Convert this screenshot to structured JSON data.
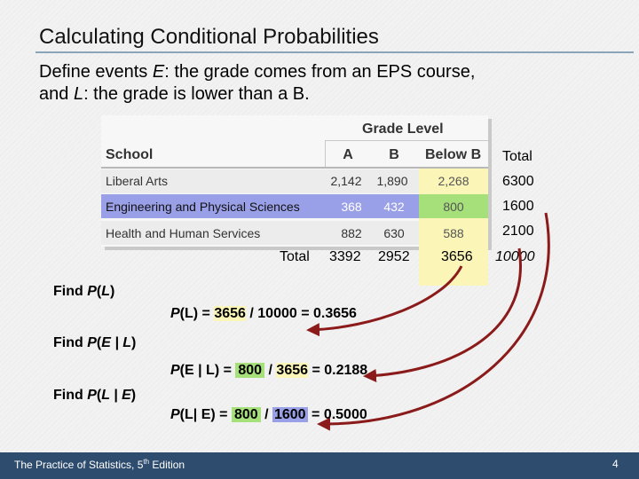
{
  "slide": {
    "title": "Calculating Conditional Probabilities",
    "intro_line1_prefix": "Define events ",
    "intro_line1_E": "E",
    "intro_line1_suffix": ": the grade comes from an EPS course,",
    "intro_line2_prefix": "and ",
    "intro_line2_L": "L",
    "intro_line2_suffix": ": the grade is lower than a B."
  },
  "table": {
    "group_header": "Grade Level",
    "school_header": "School",
    "col_A": "A",
    "col_B": "B",
    "col_below": "Below B",
    "col_total": "Total",
    "rows": [
      {
        "school": "Liberal Arts",
        "a": "2,142",
        "b": "1,890",
        "below": "2,268",
        "total": "6300"
      },
      {
        "school": "Engineering and Physical Sciences",
        "a": "368",
        "b": "432",
        "below": "800",
        "total": "1600"
      },
      {
        "school": "Health and Human Services",
        "a": "882",
        "b": "630",
        "below": "588",
        "total": "2100"
      }
    ],
    "totals": {
      "label": "Total",
      "a": "3392",
      "b": "2952",
      "below": "3656",
      "grand": "10000"
    }
  },
  "problems": [
    {
      "find_prefix": "Find ",
      "find_P": "P",
      "find_open": "(",
      "find_arg": "L",
      "find_close": ")",
      "answer_lhs_P": "P",
      "answer_lhs_arg": "(L) = ",
      "answer_num": "3656",
      "answer_mid": " / 10000 = 0.3656"
    },
    {
      "find_prefix": "Find ",
      "find_P": "P",
      "find_open": "(",
      "find_arg": "E | L",
      "find_close": ")",
      "answer_lhs_P": "P",
      "answer_lhs_arg": "(E | L) = ",
      "answer_num": "800",
      "answer_sep": " / ",
      "answer_den": "3656",
      "answer_result": " = 0.2188"
    },
    {
      "find_prefix": "Find ",
      "find_P": "P",
      "find_open": "(",
      "find_arg": "L | E",
      "find_close": ")",
      "answer_lhs_P": "P",
      "answer_lhs_arg": "(L| E) = ",
      "answer_num": "800",
      "answer_sep": " / ",
      "answer_den": "1600",
      "answer_result": " = 0.5000"
    }
  ],
  "footer": {
    "text_prefix": "The Practice of Statistics, 5",
    "text_sup": "th",
    "text_suffix": " Edition",
    "page": "4"
  },
  "colors": {
    "footer": "#2e4c6e",
    "highlight_yellow": "#fbf5b8",
    "highlight_green": "#a6e07a",
    "highlight_purple": "#9aa0e8",
    "arrow": "#8b1a1a"
  }
}
